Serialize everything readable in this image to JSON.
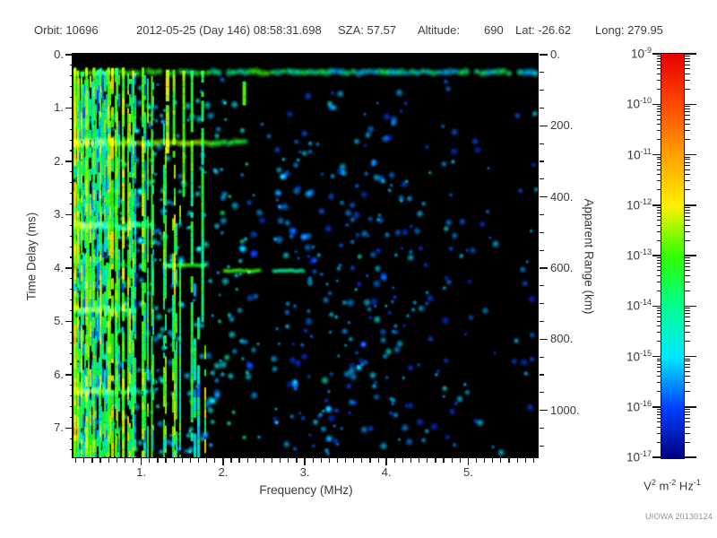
{
  "header": {
    "orbit": "Orbit: 10696",
    "datetime": "2012-05-25 (Day 146) 08:58:31.698",
    "sza": "SZA: 57.57",
    "altitude_label": "Altitude:",
    "altitude_value": "690",
    "lat": "Lat: -26.62",
    "long": "Long: 279.95"
  },
  "footer": {
    "watermark": "UIOWA 20130124"
  },
  "chart_data": {
    "type": "heatmap",
    "description": "Radar sounder ionogram: received spectral density vs sounding frequency and echo time delay. Dense vertical plasma-oscillation stripes below ~1.8 MHz, horizontal harmonic bands near 1.65/3.2/4.8/6.3 ms, surface/direct-signal band near 0.33 ms across all frequencies, ionospheric echo segments near 4 ms between 1.3-3.0 MHz, dark gap near 2.5-2.6 MHz, scattered faint blue noise elsewhere.",
    "x_axis": {
      "label": "Frequency (MHz)",
      "range": [
        0.17,
        5.84
      ],
      "major_ticks": [
        1,
        2,
        3,
        4,
        5
      ],
      "major_tick_labels": [
        "1.",
        "2.",
        "3.",
        "4.",
        "5."
      ],
      "minor_tick_step": 0.1
    },
    "y_axis_left": {
      "label": "Time Delay (ms)",
      "range": [
        0,
        7.53
      ],
      "major_ticks": [
        0,
        1,
        2,
        3,
        4,
        5,
        6,
        7
      ],
      "major_tick_labels": [
        "0.",
        "1.",
        "2.",
        "3.",
        "4.",
        "5.",
        "6.",
        "7."
      ],
      "minor_tick_step": 0.2
    },
    "y_axis_right": {
      "label": "Apparent Range (km)",
      "km_per_ms": 150,
      "major_ticks": [
        0,
        200,
        400,
        600,
        800,
        1000
      ],
      "major_tick_labels": [
        "0.",
        "200.",
        "400.",
        "600.",
        "800.",
        "1000."
      ],
      "minor_tick_step": 50
    },
    "colorbar": {
      "scale": "log",
      "tick_exponents": [
        "-9",
        "-10",
        "-11",
        "-12",
        "-13",
        "-14",
        "-15",
        "-16",
        "-17"
      ],
      "base": "10",
      "unit_parts": [
        {
          "t": "V"
        },
        {
          "s": "2"
        },
        {
          "t": " m"
        },
        {
          "s": "-2"
        },
        {
          "t": " Hz"
        },
        {
          "s": "-1"
        }
      ],
      "stop_colors_top_to_bottom": [
        "#e80000",
        "#ff4800",
        "#ffa000",
        "#fff000",
        "#30ff00",
        "#00ff90",
        "#00e8ff",
        "#0040ff",
        "#000080"
      ]
    },
    "features": {
      "seed": 1234,
      "background": "#000000",
      "colormap_stops": [
        [
          0,
          [
            0,
            0,
            128
          ]
        ],
        [
          0.125,
          [
            0,
            64,
            255
          ]
        ],
        [
          0.25,
          [
            0,
            232,
            255
          ]
        ],
        [
          0.375,
          [
            0,
            255,
            144
          ]
        ],
        [
          0.5,
          [
            48,
            255,
            0
          ]
        ],
        [
          0.625,
          [
            255,
            240,
            0
          ]
        ],
        [
          0.75,
          [
            255,
            160,
            0
          ]
        ],
        [
          0.875,
          [
            255,
            72,
            0
          ]
        ],
        [
          1,
          [
            240,
            0,
            0
          ]
        ]
      ],
      "top_band": {
        "delay_ms": 0.33,
        "jitter": 2.6
      },
      "plasma_stripe_region": {
        "f_start": 0.17,
        "f_end": 1.8,
        "delay_start": 0.24,
        "edge_f_base": 1.05,
        "edge_delay_slope": 0.135
      },
      "strong_stripes": [
        [
          0.19,
          0.24,
          7.53,
          0.6,
          3
        ],
        [
          0.225,
          0.3,
          7.53,
          0.52,
          2
        ],
        [
          0.27,
          0.3,
          7.5,
          0.55,
          2
        ],
        [
          0.33,
          0.24,
          7.53,
          0.58,
          3
        ],
        [
          0.42,
          0.24,
          7.53,
          0.5,
          3
        ],
        [
          0.5,
          0.3,
          7.53,
          0.55,
          2
        ],
        [
          0.6,
          0.24,
          7.53,
          0.52,
          3
        ],
        [
          0.7,
          0.4,
          7.53,
          0.5,
          2
        ],
        [
          0.78,
          0.24,
          7.53,
          0.55,
          3
        ],
        [
          0.9,
          0.3,
          7.53,
          0.5,
          2
        ],
        [
          1.02,
          0.24,
          7.53,
          0.52,
          3
        ],
        [
          1.13,
          0.4,
          7.5,
          0.48,
          2
        ],
        [
          1.32,
          0.28,
          1.75,
          0.55,
          4
        ],
        [
          1.4,
          0.28,
          1.9,
          0.5,
          3
        ],
        [
          1.52,
          0.3,
          2.6,
          0.5,
          3
        ],
        [
          1.62,
          0.3,
          7.2,
          0.45,
          3
        ],
        [
          1.75,
          0.3,
          5.0,
          0.42,
          3
        ],
        [
          2.26,
          0.5,
          1.0,
          0.5,
          4
        ]
      ],
      "h_bands": [
        [
          1.65,
          0.17,
          2.3,
          0.55
        ],
        [
          3.2,
          0.17,
          1.15,
          0.5
        ],
        [
          4.78,
          0.17,
          0.95,
          0.5
        ],
        [
          6.32,
          0.17,
          1.05,
          0.52
        ]
      ],
      "echo_segments": [
        [
          3.95,
          1.28,
          1.78,
          0.48
        ],
        [
          4.05,
          2.02,
          2.48,
          0.5
        ],
        [
          4.05,
          2.62,
          3.0,
          0.35
        ]
      ],
      "dark_gap_f": [
        2.5,
        2.62
      ],
      "blob_attempts": 1700
    }
  }
}
